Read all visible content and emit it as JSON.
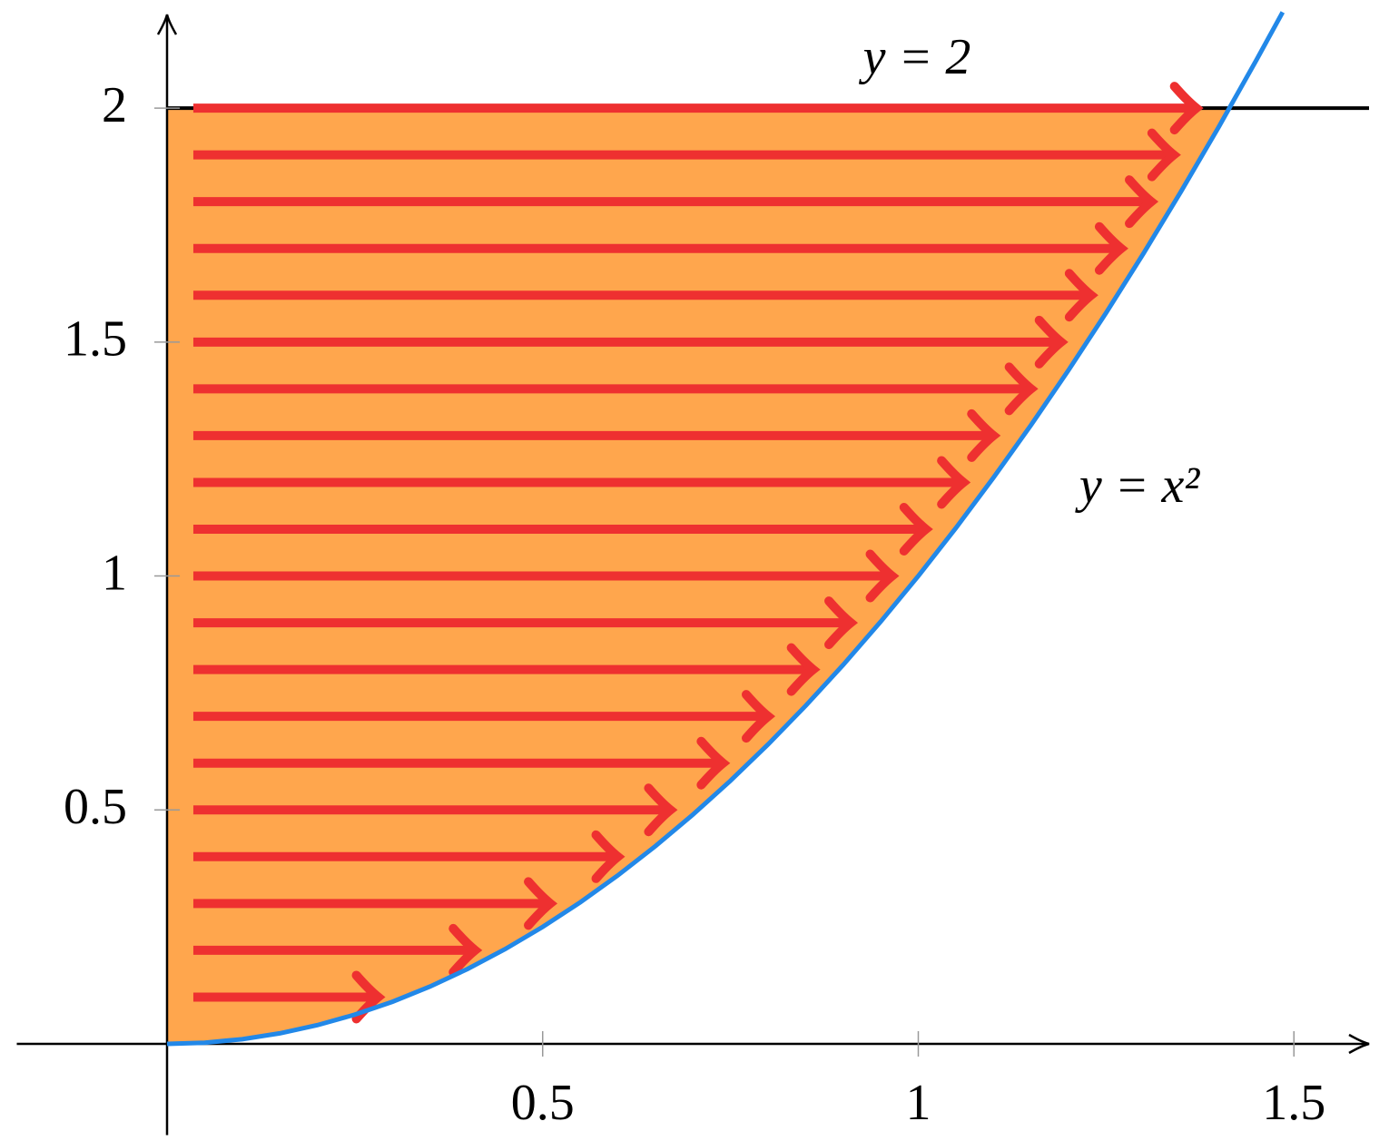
{
  "chart_data": {
    "type": "line",
    "xlim": [
      -0.2,
      1.6
    ],
    "ylim": [
      -0.195,
      2.2
    ],
    "xticks": [
      0.5,
      1,
      1.5
    ],
    "yticks": [
      0.5,
      1,
      1.5,
      2
    ],
    "fill_color": "#ffa64d",
    "series": [
      {
        "name": "y = x²",
        "color": "#2288e8",
        "x": [
          0,
          0.05,
          0.1,
          0.15,
          0.2,
          0.25,
          0.3,
          0.35,
          0.4,
          0.45,
          0.5,
          0.55,
          0.6,
          0.65,
          0.7,
          0.75,
          0.8,
          0.85,
          0.9,
          0.95,
          1,
          1.05,
          1.1,
          1.15,
          1.2,
          1.25,
          1.3,
          1.35,
          1.4,
          1.45,
          1.485
        ],
        "values": [
          0,
          0.0025,
          0.01,
          0.0225,
          0.04,
          0.0625,
          0.09,
          0.1225,
          0.16,
          0.2025,
          0.25,
          0.3025,
          0.36,
          0.4225,
          0.49,
          0.5625,
          0.64,
          0.7225,
          0.81,
          0.9025,
          1,
          1.1025,
          1.21,
          1.3225,
          1.44,
          1.5625,
          1.69,
          1.8225,
          1.96,
          2.1025,
          2.205
        ]
      }
    ],
    "hline": {
      "value": 2,
      "label": "y = 2",
      "color": "#000000"
    },
    "arrows": {
      "color": "#ee3030",
      "x_start": 0.035,
      "y": [
        0.1,
        0.2,
        0.3,
        0.4,
        0.5,
        0.6,
        0.7,
        0.8,
        0.9,
        1.0,
        1.1,
        1.2,
        1.3,
        1.4,
        1.5,
        1.6,
        1.7,
        1.8,
        1.9,
        2.0
      ],
      "x_end": [
        0.281,
        0.41,
        0.51,
        0.6,
        0.67,
        0.74,
        0.8,
        0.86,
        0.91,
        0.965,
        1.01,
        1.06,
        1.1,
        1.15,
        1.19,
        1.23,
        1.27,
        1.31,
        1.34,
        1.37
      ]
    }
  }
}
